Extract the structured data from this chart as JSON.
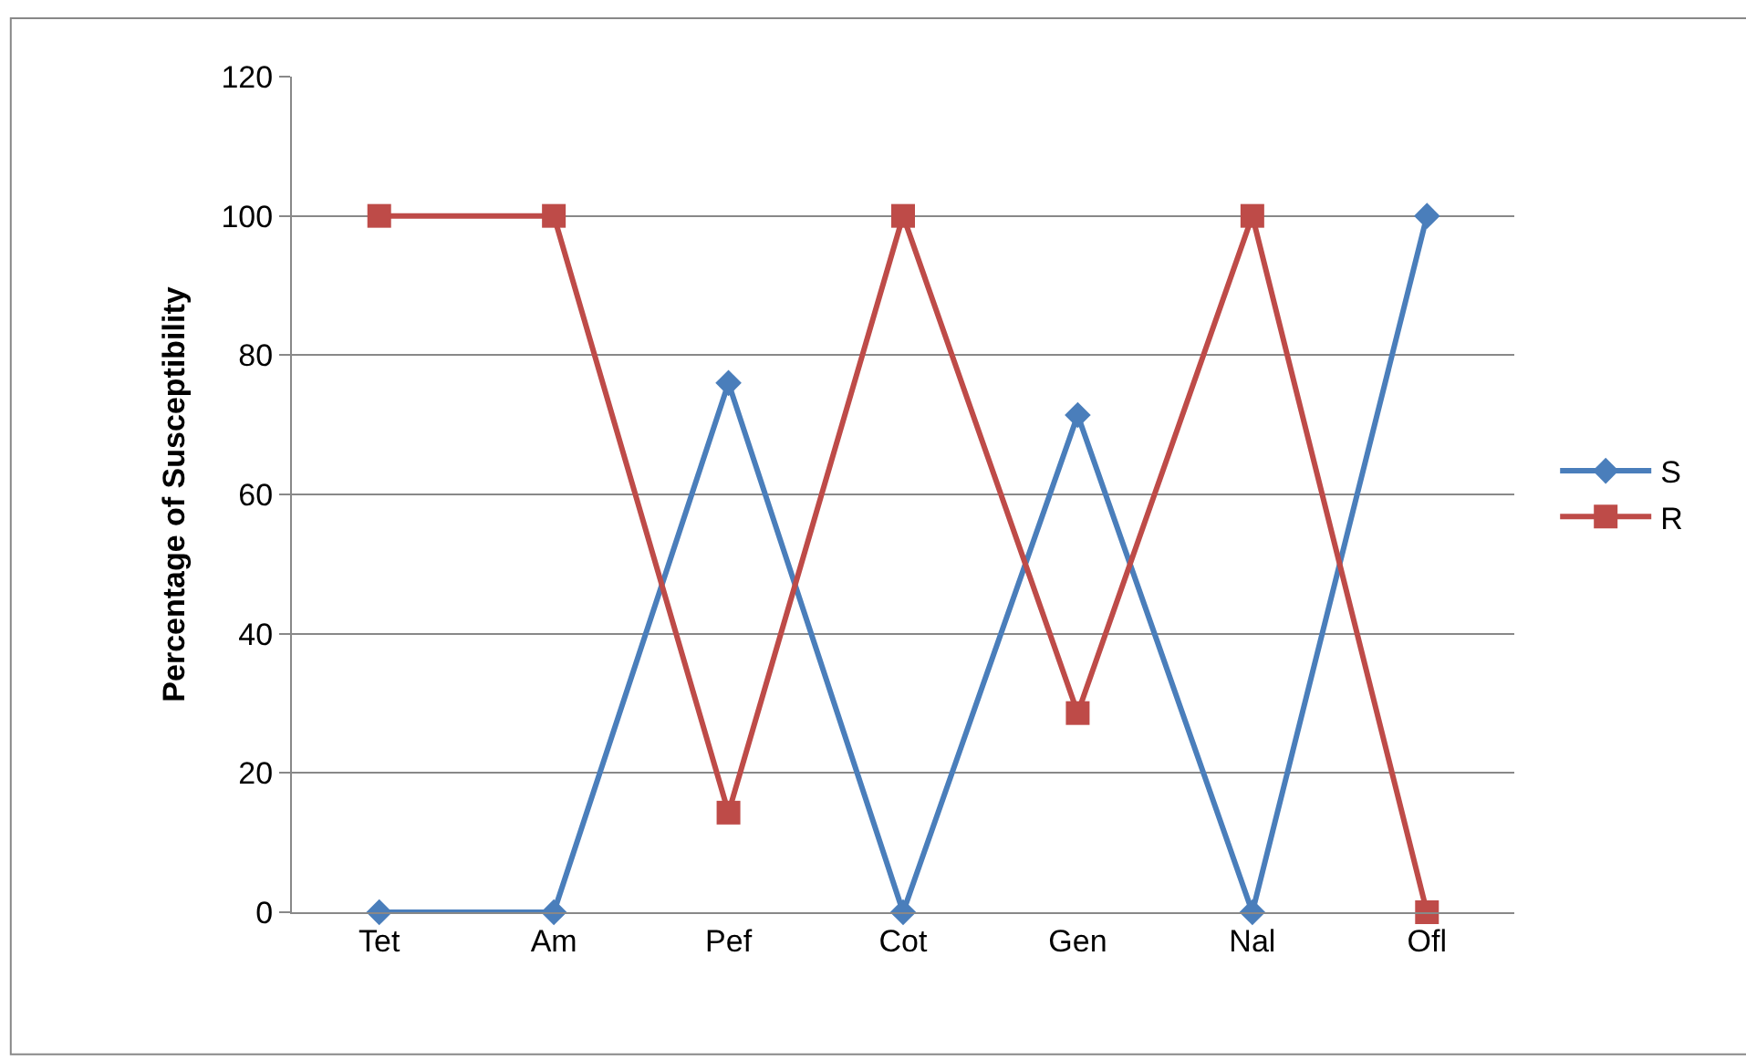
{
  "chart_data": {
    "type": "line",
    "ylabel": "Percentage of Susceptibility",
    "categories": [
      "Tet",
      "Am",
      "Pef",
      "Cot",
      "Gen",
      "Nal",
      "Ofl"
    ],
    "series": [
      {
        "name": "S",
        "color": "#4a7ebb",
        "marker": "diamond",
        "values": [
          0,
          0,
          76,
          0,
          71.4,
          0,
          100
        ]
      },
      {
        "name": "R",
        "color": "#be4b48",
        "marker": "square",
        "values": [
          100,
          100,
          14.3,
          100,
          28.6,
          100,
          0
        ]
      }
    ],
    "ylim": [
      0,
      120
    ],
    "yticks": [
      0,
      20,
      40,
      60,
      80,
      100,
      120
    ],
    "grid": "y",
    "legend": "right",
    "line_style": "solid"
  }
}
